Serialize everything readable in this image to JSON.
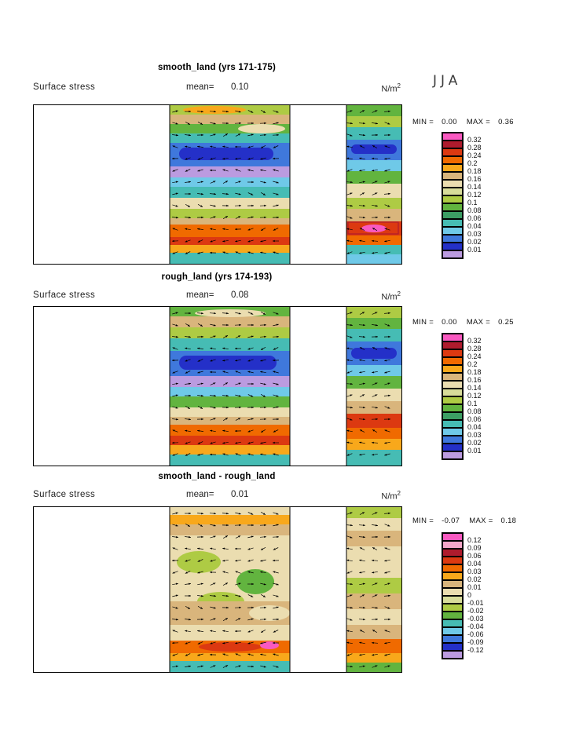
{
  "season_label": "JJA",
  "panels": [
    {
      "title": "smooth_land (yrs 171-175)",
      "variable": "Surface stress",
      "mean_label": "mean=",
      "mean_value": "0.10",
      "units_base": "N/m",
      "units_exp": "2",
      "min_label": "MIN =",
      "min_value": "0.00",
      "max_label": "MAX =",
      "max_value": "0.36",
      "colorbar": {
        "labels": [
          "0.32",
          "0.28",
          "0.24",
          "0.2",
          "0.18",
          "0.16",
          "0.14",
          "0.12",
          "0.1",
          "0.08",
          "0.06",
          "0.04",
          "0.03",
          "0.02",
          "0.01"
        ],
        "colors": [
          "#F959C1",
          "#AF1B2D",
          "#DC3911",
          "#F06A00",
          "#F8A81B",
          "#D9B57C",
          "#EBDDB0",
          "#D8DC9A",
          "#AECB44",
          "#62B43F",
          "#3C9E64",
          "#46BCB4",
          "#6FC9E8",
          "#3F78DC",
          "#2430C8",
          "#BB9BE0"
        ]
      }
    },
    {
      "title": "rough_land (yrs 174-193)",
      "variable": "Surface stress",
      "mean_label": "mean=",
      "mean_value": "0.08",
      "units_base": "N/m",
      "units_exp": "2",
      "min_label": "MIN =",
      "min_value": "0.00",
      "max_label": "MAX =",
      "max_value": "0.25",
      "colorbar": {
        "labels": [
          "0.32",
          "0.28",
          "0.24",
          "0.2",
          "0.18",
          "0.16",
          "0.14",
          "0.12",
          "0.1",
          "0.08",
          "0.06",
          "0.04",
          "0.03",
          "0.02",
          "0.01"
        ],
        "colors": [
          "#F959C1",
          "#AF1B2D",
          "#DC3911",
          "#F06A00",
          "#F8A81B",
          "#D9B57C",
          "#EBDDB0",
          "#D8DC9A",
          "#AECB44",
          "#62B43F",
          "#3C9E64",
          "#46BCB4",
          "#6FC9E8",
          "#3F78DC",
          "#2430C8",
          "#BB9BE0"
        ]
      }
    },
    {
      "title": "smooth_land - rough_land",
      "variable": "Surface stress",
      "mean_label": "mean=",
      "mean_value": "0.01",
      "units_base": "N/m",
      "units_exp": "2",
      "min_label": "MIN =",
      "min_value": "-0.07",
      "max_label": "MAX =",
      "max_value": "0.18",
      "colorbar": {
        "labels": [
          "0.12",
          "0.09",
          "0.06",
          "0.04",
          "0.03",
          "0.02",
          "0.01",
          "0",
          "-0.01",
          "-0.02",
          "-0.03",
          "-0.04",
          "-0.06",
          "-0.09",
          "-0.12"
        ],
        "colors": [
          "#F959C1",
          "#F4A6C8",
          "#AF1B2D",
          "#DC3911",
          "#F06A00",
          "#F8A81B",
          "#D9B57C",
          "#EBDDB0",
          "#D8DC9A",
          "#AECB44",
          "#62B43F",
          "#46BCB4",
          "#6FC9E8",
          "#3F78DC",
          "#2430C8",
          "#BB9BE0"
        ]
      }
    }
  ],
  "chart_data": [
    {
      "type": "heatmap",
      "plot_style": "filled_contours_with_vector_arrows",
      "title": "smooth_land (yrs 171-175)",
      "variable": "Surface stress",
      "season": "JJA",
      "units": "N/m^2",
      "mean": 0.1,
      "min": 0.0,
      "max": 0.36,
      "contour_levels": [
        0.01,
        0.02,
        0.03,
        0.04,
        0.06,
        0.08,
        0.1,
        0.12,
        0.14,
        0.16,
        0.18,
        0.2,
        0.24,
        0.28,
        0.32
      ],
      "legend_position": "right"
    },
    {
      "type": "heatmap",
      "plot_style": "filled_contours_with_vector_arrows",
      "title": "rough_land (yrs 174-193)",
      "variable": "Surface stress",
      "season": "JJA",
      "units": "N/m^2",
      "mean": 0.08,
      "min": 0.0,
      "max": 0.25,
      "contour_levels": [
        0.01,
        0.02,
        0.03,
        0.04,
        0.06,
        0.08,
        0.1,
        0.12,
        0.14,
        0.16,
        0.18,
        0.2,
        0.24,
        0.28,
        0.32
      ],
      "legend_position": "right"
    },
    {
      "type": "heatmap",
      "plot_style": "filled_contours_with_vector_arrows",
      "title": "smooth_land - rough_land",
      "variable": "Surface stress",
      "season": "JJA",
      "units": "N/m^2",
      "mean": 0.01,
      "min": -0.07,
      "max": 0.18,
      "contour_levels": [
        -0.12,
        -0.09,
        -0.06,
        -0.04,
        -0.03,
        -0.02,
        -0.01,
        0,
        0.01,
        0.02,
        0.03,
        0.04,
        0.06,
        0.09,
        0.12
      ],
      "legend_position": "right"
    }
  ]
}
